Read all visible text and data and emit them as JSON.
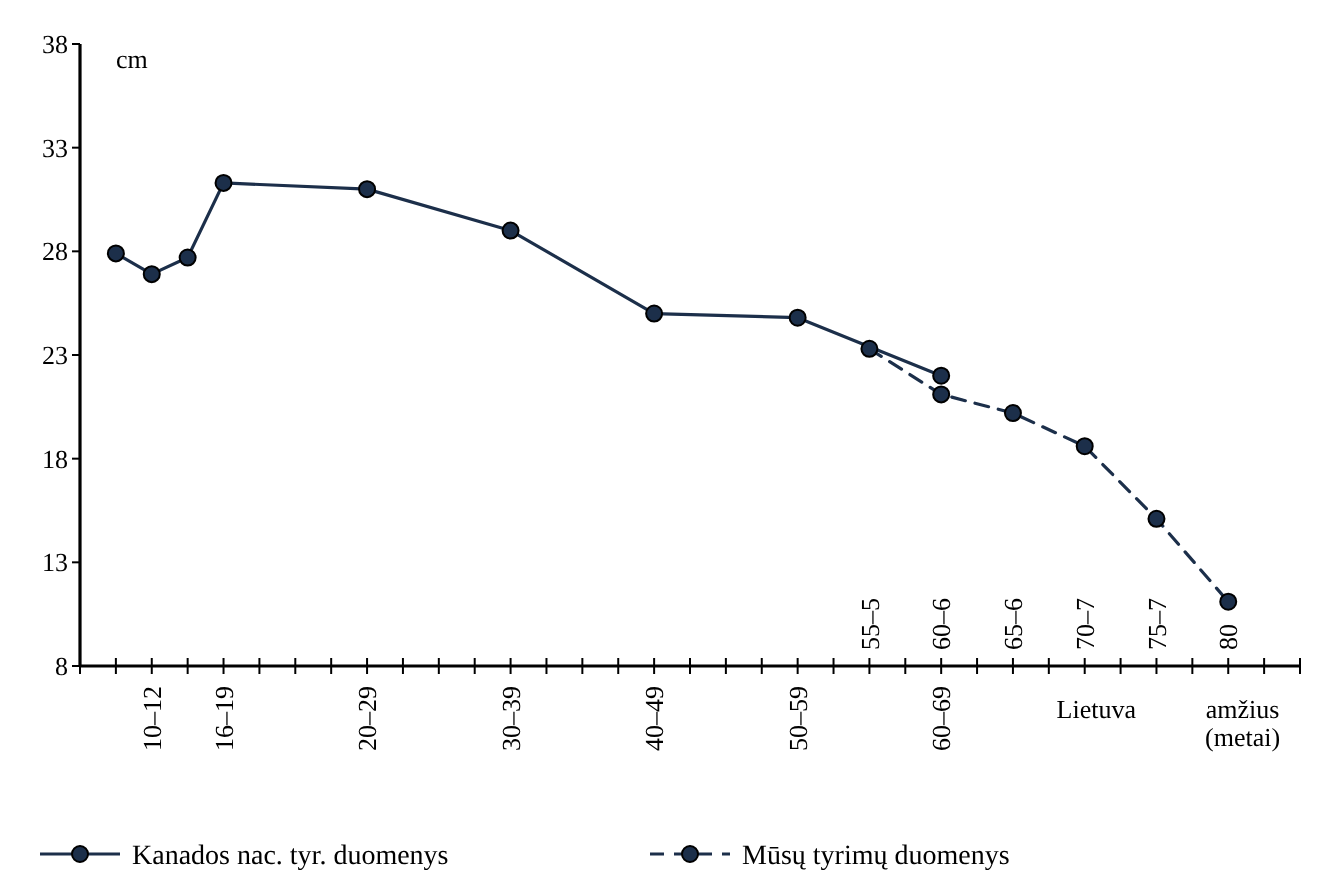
{
  "chart_data": {
    "type": "line",
    "ylabel": "cm",
    "xlabel": "amžius (metai)",
    "x2label": "Lietuva",
    "ylim": [
      8,
      38
    ],
    "yticks": [
      8,
      13,
      18,
      23,
      28,
      33,
      38
    ],
    "categories": [
      null,
      null,
      "10–12",
      null,
      "16–19",
      null,
      null,
      null,
      "20–29",
      null,
      null,
      null,
      "30–39",
      null,
      null,
      null,
      "40–49",
      null,
      null,
      null,
      "50–59",
      null,
      null,
      null,
      "60–69",
      null,
      null,
      null,
      null,
      null,
      null,
      null,
      null,
      null,
      null
    ],
    "annotations": [
      "55–5",
      "60–6",
      "65–6",
      "70–7",
      "75–7",
      "80"
    ],
    "marker": "circle",
    "legend": "bottom",
    "series": [
      {
        "name": "Kanados nac. tyr. duomenys",
        "color": "#1c2f4a",
        "line_style": "solid",
        "values": [
          null,
          27.9,
          26.9,
          27.7,
          31.3,
          null,
          null,
          null,
          31.0,
          null,
          null,
          null,
          29.0,
          null,
          null,
          null,
          25.0,
          null,
          null,
          null,
          24.8,
          null,
          null,
          null,
          22.0,
          null,
          null,
          null,
          null,
          null,
          null,
          null,
          null,
          null,
          null
        ]
      },
      {
        "name": "Mūsų tyrimų duomenys",
        "color": "#1c2f4a",
        "line_style": "dashed",
        "values": [
          null,
          null,
          null,
          null,
          null,
          null,
          null,
          null,
          null,
          null,
          null,
          null,
          null,
          null,
          null,
          null,
          null,
          null,
          null,
          null,
          null,
          null,
          23.3,
          null,
          21.1,
          null,
          20.2,
          null,
          18.6,
          null,
          15.1,
          null,
          11.1,
          null,
          null
        ]
      }
    ]
  }
}
